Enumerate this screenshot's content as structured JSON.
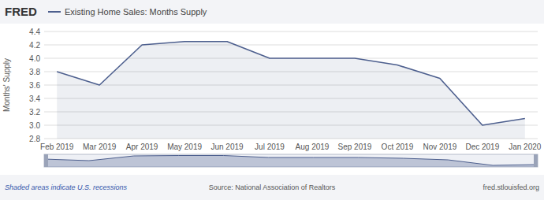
{
  "chart_data": {
    "type": "line",
    "title": "FRED",
    "y_label": "Months' Supply",
    "categories": [
      "Feb 2019",
      "Mar 2019",
      "Apr 2019",
      "May 2019",
      "Jun 2019",
      "Jul 2019",
      "Aug 2019",
      "Sep 2019",
      "Oct 2019",
      "Nov 2019",
      "Dec 2019",
      "Jan 2020"
    ],
    "series": [
      {
        "name": "Existing Home Sales: Months Supply",
        "color": "#4d5f8e",
        "values": [
          3.8,
          3.6,
          4.2,
          4.25,
          4.25,
          4.0,
          4.0,
          4.0,
          3.9,
          3.7,
          3.0,
          3.1
        ]
      }
    ],
    "ylim": [
      2.8,
      4.4
    ],
    "yticks": [
      2.8,
      {
        "value": 3.0,
        "label": "3.0"
      },
      3.2,
      3.4,
      3.6,
      3.8,
      {
        "value": 4.0,
        "label": "4.0"
      },
      4.2,
      4.4
    ],
    "grid": true,
    "legend": "top-left",
    "annotations": [
      "Shaded areas indicate U.S. recessions",
      "Source: National Association of Realtors",
      "fred.stlouisfed.org"
    ]
  }
}
